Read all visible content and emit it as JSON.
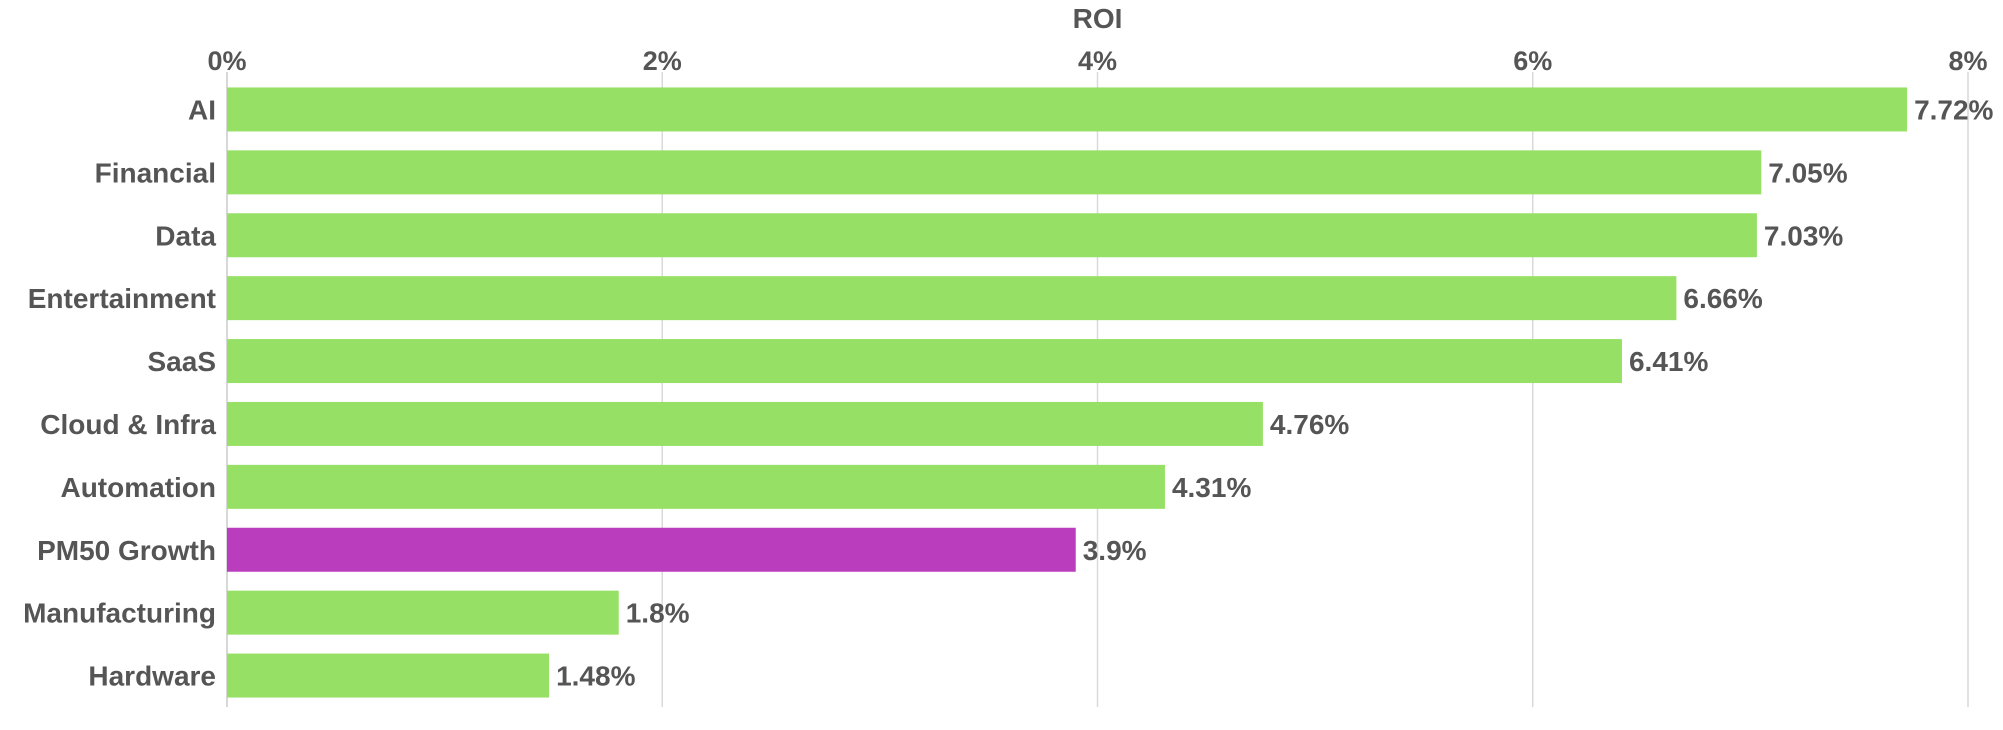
{
  "chart_data": {
    "type": "bar",
    "orientation": "horizontal",
    "xlabel": "ROI",
    "xlabel_position": "top",
    "xlim": [
      0,
      8
    ],
    "xticks": [
      0,
      2,
      4,
      6,
      8
    ],
    "xtick_labels": [
      "0%",
      "2%",
      "4%",
      "6%",
      "8%"
    ],
    "grid": true,
    "categories": [
      "AI",
      "Financial",
      "Data",
      "Entertainment",
      "SaaS",
      "Cloud & Infra",
      "Automation",
      "PM50 Growth",
      "Manufacturing",
      "Hardware"
    ],
    "values": [
      7.72,
      7.05,
      7.03,
      6.66,
      6.41,
      4.76,
      4.31,
      3.9,
      1.8,
      1.48
    ],
    "value_labels": [
      "7.72%",
      "7.05%",
      "7.03%",
      "6.66%",
      "6.41%",
      "4.76%",
      "4.31%",
      "3.9%",
      "1.8%",
      "1.48%"
    ],
    "colors": {
      "default": "#97e066",
      "highlight": "#b93dbd",
      "highlight_category": "PM50 Growth",
      "text": "#555555",
      "grid": "#d9d9d9"
    }
  }
}
